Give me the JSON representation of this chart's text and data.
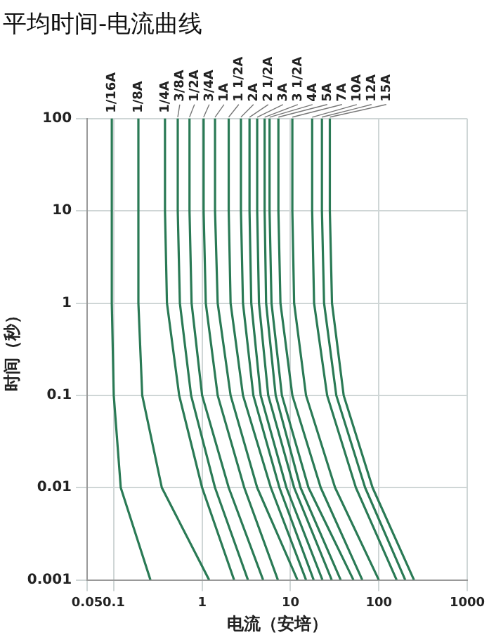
{
  "chart_data": {
    "type": "line",
    "title": "平均时间-电流曲线",
    "xlabel": "电流（安培）",
    "ylabel": "时间（秒）",
    "log": "xy",
    "grid": true,
    "legend": false,
    "marker": "none",
    "line_style": "solid",
    "xlim": [
      0.05,
      1000
    ],
    "xticks": [
      0.05,
      0.1,
      1,
      10,
      100,
      1000
    ],
    "ylim": [
      0.001,
      100
    ],
    "yticks": [
      0.001,
      0.01,
      0.1,
      1,
      10,
      100
    ],
    "series": [
      {
        "name": "1/16A",
        "color": "#2a7a55",
        "x": [
          0.095,
          0.095,
          0.095,
          0.1,
          0.12,
          0.26
        ],
        "values": [
          100,
          10,
          1,
          0.1,
          0.01,
          0.001
        ]
      },
      {
        "name": "1/8A",
        "color": "#2a7a55",
        "x": [
          0.19,
          0.19,
          0.19,
          0.21,
          0.35,
          1.2
        ],
        "values": [
          100,
          10,
          1,
          0.1,
          0.01,
          0.001
        ]
      },
      {
        "name": "1/4A",
        "color": "#2a7a55",
        "x": [
          0.38,
          0.38,
          0.4,
          0.55,
          1.0,
          2.3
        ],
        "values": [
          100,
          10,
          1,
          0.1,
          0.01,
          0.001
        ]
      },
      {
        "name": "3/8A",
        "color": "#2a7a55",
        "x": [
          0.53,
          0.53,
          0.56,
          0.75,
          1.4,
          3.3
        ],
        "values": [
          100,
          10,
          1,
          0.1,
          0.01,
          0.001
        ]
      },
      {
        "name": "1/2A",
        "color": "#2a7a55",
        "x": [
          0.72,
          0.72,
          0.76,
          1.0,
          2.0,
          4.9
        ],
        "values": [
          100,
          10,
          1,
          0.1,
          0.01,
          0.001
        ]
      },
      {
        "name": "3/4A",
        "color": "#2a7a55",
        "x": [
          1.04,
          1.04,
          1.1,
          1.5,
          3.0,
          7.2
        ],
        "values": [
          100,
          10,
          1,
          0.1,
          0.01,
          0.001
        ]
      },
      {
        "name": "1A",
        "color": "#2a7a55",
        "x": [
          1.4,
          1.4,
          1.5,
          2.1,
          4.2,
          12
        ],
        "values": [
          100,
          10,
          1,
          0.1,
          0.01,
          0.001
        ]
      },
      {
        "name": "1 1/2A",
        "color": "#2a7a55",
        "x": [
          2.0,
          2.0,
          2.1,
          2.9,
          6.0,
          15
        ],
        "values": [
          100,
          10,
          1,
          0.1,
          0.01,
          0.001
        ]
      },
      {
        "name": "2A",
        "color": "#2a7a55",
        "x": [
          2.75,
          2.75,
          2.9,
          3.8,
          7.5,
          18.3
        ],
        "values": [
          100,
          10,
          1,
          0.1,
          0.01,
          0.001
        ]
      },
      {
        "name": "2 1/2A",
        "color": "#2a7a55",
        "x": [
          3.44,
          3.44,
          3.6,
          4.6,
          9,
          23
        ],
        "values": [
          100,
          10,
          1,
          0.1,
          0.01,
          0.001
        ]
      },
      {
        "name": "3A",
        "color": "#2a7a55",
        "x": [
          4.2,
          4.2,
          4.4,
          5.6,
          11,
          29.3
        ],
        "values": [
          100,
          10,
          1,
          0.1,
          0.01,
          0.001
        ]
      },
      {
        "name": "3 1/2A",
        "color": "#2a7a55",
        "x": [
          5.1,
          5.1,
          5.3,
          6.8,
          13,
          37
        ],
        "values": [
          100,
          10,
          1,
          0.1,
          0.01,
          0.001
        ]
      },
      {
        "name": "4A",
        "color": "#2a7a55",
        "x": [
          5.8,
          5.8,
          6.1,
          8,
          16,
          51.6
        ],
        "values": [
          100,
          10,
          1,
          0.1,
          0.01,
          0.001
        ]
      },
      {
        "name": "5A",
        "color": "#2a7a55",
        "x": [
          7.3,
          7.3,
          7.7,
          10.5,
          22,
          65
        ],
        "values": [
          100,
          10,
          1,
          0.1,
          0.01,
          0.001
        ]
      },
      {
        "name": "7A",
        "color": "#2a7a55",
        "x": [
          10.5,
          10.5,
          11,
          15,
          32,
          100
        ],
        "values": [
          100,
          10,
          1,
          0.1,
          0.01,
          0.001
        ]
      },
      {
        "name": "10A",
        "color": "#2a7a55",
        "x": [
          17.6,
          17.6,
          18.5,
          26,
          55,
          159
        ],
        "values": [
          100,
          10,
          1,
          0.1,
          0.01,
          0.001
        ]
      },
      {
        "name": "12A",
        "color": "#2a7a55",
        "x": [
          22.7,
          22.7,
          24,
          33,
          70,
          199
        ],
        "values": [
          100,
          10,
          1,
          0.1,
          0.01,
          0.001
        ]
      },
      {
        "name": "15A",
        "color": "#2a7a55",
        "x": [
          27.9,
          27.9,
          29.5,
          40,
          85,
          250
        ],
        "values": [
          100,
          10,
          1,
          0.1,
          0.01,
          0.001
        ]
      }
    ]
  }
}
